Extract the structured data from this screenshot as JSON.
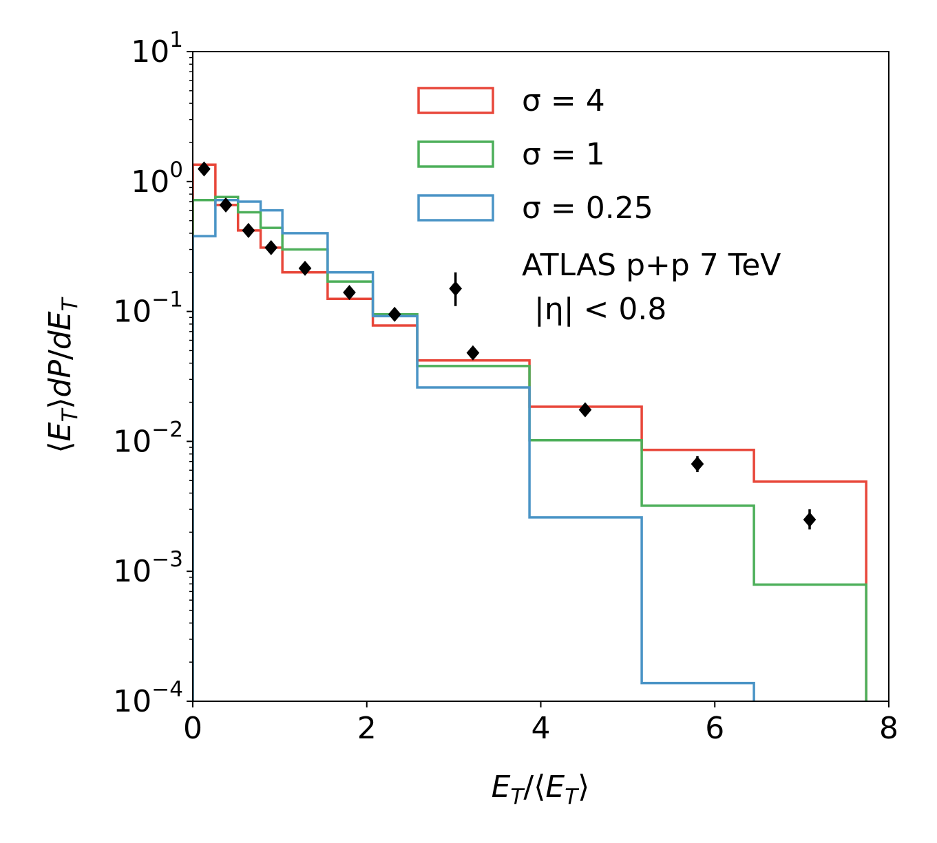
{
  "chart_data": {
    "type": "line",
    "xlabel": "E_T/⟨E_T⟩",
    "ylabel": "⟨E_T⟩dP/dE_T",
    "xlim": [
      0,
      8
    ],
    "ylim": [
      0.0001,
      10
    ],
    "yscale": "log",
    "x_ticks": [
      "0",
      "2",
      "4",
      "6",
      "8"
    ],
    "y_ticks": [
      {
        "base": "10",
        "exp": "1",
        "value": 10
      },
      {
        "base": "10",
        "exp": "0",
        "value": 1
      },
      {
        "base": "10",
        "exp": "−1",
        "value": 0.1
      },
      {
        "base": "10",
        "exp": "−2",
        "value": 0.01
      },
      {
        "base": "10",
        "exp": "−3",
        "value": 0.001
      },
      {
        "base": "10",
        "exp": "−4",
        "value": 0.0001
      }
    ],
    "bin_edges": [
      0,
      0.26,
      0.52,
      0.78,
      1.03,
      1.55,
      2.07,
      2.58,
      3.87,
      5.16,
      6.45,
      7.74
    ],
    "series": [
      {
        "name": "σ = 4",
        "color": "#e8473a",
        "values": [
          1.35,
          0.66,
          0.42,
          0.31,
          0.2,
          0.125,
          0.078,
          0.042,
          0.0185,
          0.0086,
          0.0049
        ]
      },
      {
        "name": "σ = 1",
        "color": "#4daf5a",
        "values": [
          0.72,
          0.76,
          0.58,
          0.44,
          0.3,
          0.17,
          0.095,
          0.038,
          0.0102,
          0.0032,
          0.00079
        ]
      },
      {
        "name": "σ = 0.25",
        "color": "#4a94c6",
        "values": [
          0.38,
          0.72,
          0.7,
          0.6,
          0.4,
          0.2,
          0.092,
          0.026,
          0.0026,
          0.000138,
          null
        ]
      }
    ],
    "data_points": {
      "name": "ATLAS p+p 7 TeV",
      "subtitle": "|η| < 0.8",
      "color": "#000000",
      "points": [
        {
          "x": 0.13,
          "y": 1.25,
          "ylo": 1.2,
          "yhi": 1.3
        },
        {
          "x": 0.38,
          "y": 0.66,
          "ylo": 0.64,
          "yhi": 0.68
        },
        {
          "x": 0.64,
          "y": 0.42,
          "ylo": 0.405,
          "yhi": 0.435
        },
        {
          "x": 0.9,
          "y": 0.31,
          "ylo": 0.3,
          "yhi": 0.32
        },
        {
          "x": 1.29,
          "y": 0.215,
          "ylo": 0.208,
          "yhi": 0.222
        },
        {
          "x": 1.8,
          "y": 0.14,
          "ylo": 0.135,
          "yhi": 0.145
        },
        {
          "x": 2.32,
          "y": 0.095,
          "ylo": 0.092,
          "yhi": 0.098
        },
        {
          "x": 3.02,
          "y": 0.15,
          "ylo": 0.11,
          "yhi": 0.2
        },
        {
          "x": 3.22,
          "y": 0.048,
          "ylo": 0.046,
          "yhi": 0.05
        },
        {
          "x": 4.51,
          "y": 0.0175,
          "ylo": 0.016,
          "yhi": 0.019
        },
        {
          "x": 5.8,
          "y": 0.0067,
          "ylo": 0.0058,
          "yhi": 0.0077
        },
        {
          "x": 7.09,
          "y": 0.0025,
          "ylo": 0.0021,
          "yhi": 0.003
        }
      ]
    },
    "legend": {
      "placement": "top-right"
    }
  }
}
